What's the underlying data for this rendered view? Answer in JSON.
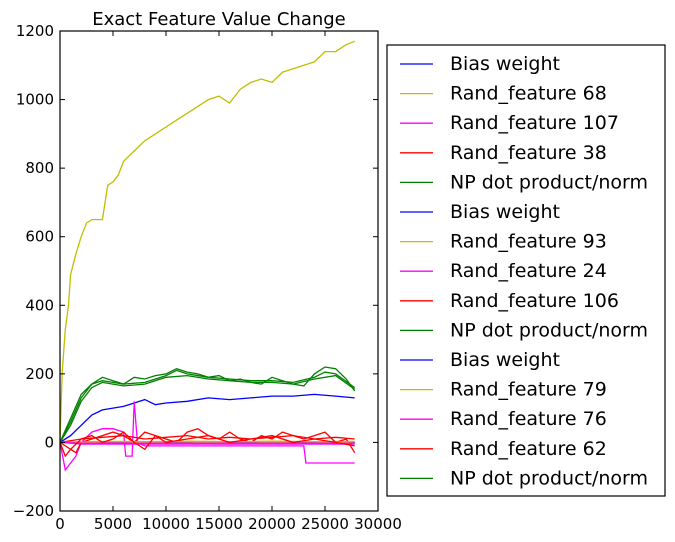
{
  "chart_data": {
    "type": "line",
    "title": "Exact Feature Value Change",
    "xlabel": "",
    "ylabel": "",
    "xlim": [
      0,
      30000
    ],
    "ylim": [
      -200,
      1200
    ],
    "x_ticks": [
      0,
      5000,
      10000,
      15000,
      20000,
      25000,
      30000
    ],
    "x_tick_labels": [
      "0",
      "5000",
      "10000",
      "15000",
      "20000",
      "25000",
      "30000"
    ],
    "y_ticks": [
      -200,
      0,
      200,
      400,
      600,
      800,
      1000,
      1200
    ],
    "y_tick_labels": [
      "−200",
      "0",
      "200",
      "400",
      "600",
      "800",
      "1000",
      "1200"
    ],
    "grid": false,
    "legend_position": "outside-right",
    "colors": {
      "blue": "#0000ff",
      "yellow": "#bfbf00",
      "magenta": "#ff00ff",
      "red": "#ff0000",
      "green": "#008000"
    },
    "series": [
      {
        "name": "Bias weight",
        "color": "blue",
        "x": [
          0,
          1000,
          2000,
          3000,
          4000,
          5000,
          6000,
          7000,
          8000,
          9000,
          10000,
          12000,
          14000,
          16000,
          18000,
          20000,
          22000,
          24000,
          26000,
          27800
        ],
        "y": [
          0,
          20,
          50,
          80,
          95,
          100,
          105,
          115,
          125,
          110,
          115,
          120,
          130,
          125,
          130,
          135,
          135,
          140,
          135,
          130
        ]
      },
      {
        "name": "Rand_feature 68",
        "color": "yellow",
        "x": [
          0,
          200,
          500,
          800,
          1000,
          1500,
          2000,
          2500,
          3000,
          3500,
          4000,
          4500,
          5000,
          5500,
          6000,
          7000,
          8000,
          9000,
          10000,
          11000,
          12000,
          13000,
          14000,
          15000,
          16000,
          17000,
          18000,
          19000,
          20000,
          21000,
          22000,
          23000,
          24000,
          25000,
          26000,
          27000,
          27800
        ],
        "y": [
          0,
          200,
          330,
          400,
          490,
          550,
          600,
          640,
          650,
          650,
          650,
          750,
          760,
          780,
          820,
          850,
          880,
          900,
          920,
          940,
          960,
          980,
          1000,
          1010,
          990,
          1030,
          1050,
          1060,
          1050,
          1080,
          1090,
          1100,
          1110,
          1140,
          1140,
          1160,
          1170
        ]
      },
      {
        "name": "Rand_feature 107",
        "color": "magenta",
        "x": [
          0,
          500,
          1000,
          1500,
          2000,
          3000,
          4000,
          5000,
          6000,
          6200,
          6800,
          7000,
          7300,
          8000,
          10000,
          15000,
          20000,
          23000,
          23200,
          24000,
          27800
        ],
        "y": [
          0,
          -80,
          -60,
          -40,
          0,
          30,
          40,
          40,
          30,
          -40,
          -40,
          120,
          0,
          -10,
          -10,
          -10,
          -10,
          -10,
          -60,
          -60,
          -60
        ]
      },
      {
        "name": "Rand_feature 38",
        "color": "red",
        "x": [
          0,
          2000,
          4000,
          6000,
          8000,
          10000,
          12000,
          14000,
          16000,
          18000,
          20000,
          22000,
          24000,
          26000,
          27800
        ],
        "y": [
          0,
          10,
          15,
          20,
          10,
          15,
          20,
          10,
          15,
          10,
          15,
          20,
          10,
          15,
          10
        ]
      },
      {
        "name": "NP dot product/norm",
        "color": "green",
        "x": [
          0,
          1000,
          2000,
          3000,
          4000,
          5000,
          6000,
          8000,
          10000,
          11000,
          12000,
          14000,
          16000,
          18000,
          20000,
          22000,
          24000,
          25000,
          26000,
          27800
        ],
        "y": [
          0,
          60,
          130,
          170,
          180,
          175,
          170,
          175,
          195,
          210,
          200,
          190,
          185,
          180,
          180,
          175,
          190,
          205,
          200,
          160
        ]
      },
      {
        "name": "Bias weight",
        "color": "blue",
        "x": [
          0,
          2000,
          4000,
          6000,
          8000,
          10000,
          12000,
          14000,
          16000,
          18000,
          20000,
          22000,
          24000,
          26000,
          27800
        ],
        "y": [
          0,
          0,
          0,
          0,
          0,
          0,
          0,
          0,
          0,
          0,
          0,
          0,
          0,
          0,
          0
        ]
      },
      {
        "name": "Rand_feature 93",
        "color": "yellow",
        "x": [
          0,
          2000,
          4000,
          6000,
          8000,
          10000,
          12000,
          14000,
          16000,
          18000,
          20000,
          22000,
          24000,
          26000,
          27800
        ],
        "y": [
          0,
          2,
          3,
          3,
          2,
          3,
          4,
          3,
          2,
          3,
          4,
          3,
          2,
          3,
          3
        ]
      },
      {
        "name": "Rand_feature 24",
        "color": "magenta",
        "x": [
          0,
          2000,
          4000,
          6000,
          8000,
          10000,
          12000,
          14000,
          16000,
          18000,
          20000,
          22000,
          24000,
          26000,
          27800
        ],
        "y": [
          0,
          -5,
          -5,
          -5,
          -5,
          -5,
          -5,
          -5,
          -5,
          -5,
          -5,
          -5,
          -5,
          -5,
          -5
        ]
      },
      {
        "name": "Rand_feature 106",
        "color": "red",
        "x": [
          0,
          500,
          1000,
          1500,
          2000,
          3000,
          4000,
          5000,
          6000,
          7000,
          8000,
          9000,
          10000,
          11000,
          12000,
          13000,
          14000,
          15000,
          16000,
          17000,
          18000,
          19000,
          20000,
          21000,
          22000,
          23000,
          24000,
          25000,
          26000,
          27000,
          27800
        ],
        "y": [
          0,
          -40,
          -20,
          -30,
          0,
          10,
          20,
          30,
          20,
          0,
          30,
          20,
          10,
          0,
          30,
          40,
          20,
          10,
          30,
          10,
          0,
          20,
          10,
          30,
          20,
          10,
          20,
          30,
          0,
          10,
          -30
        ]
      },
      {
        "name": "NP dot product/norm",
        "color": "green",
        "x": [
          0,
          1000,
          2000,
          3000,
          4000,
          5000,
          6000,
          7000,
          8000,
          9000,
          10000,
          11000,
          12000,
          13000,
          14000,
          15000,
          16000,
          17000,
          18000,
          19000,
          20000,
          21000,
          22000,
          23000,
          24000,
          25000,
          26000,
          27000,
          27800
        ],
        "y": [
          0,
          70,
          140,
          170,
          190,
          180,
          170,
          190,
          185,
          195,
          200,
          215,
          205,
          200,
          190,
          195,
          180,
          185,
          175,
          170,
          190,
          180,
          170,
          165,
          200,
          220,
          215,
          185,
          150
        ]
      },
      {
        "name": "Bias weight",
        "color": "blue",
        "x": [
          0,
          2000,
          4000,
          6000,
          8000,
          10000,
          12000,
          14000,
          16000,
          18000,
          20000,
          22000,
          24000,
          26000,
          27800
        ],
        "y": [
          0,
          1,
          1,
          1,
          1,
          1,
          1,
          1,
          1,
          1,
          1,
          1,
          1,
          1,
          1
        ]
      },
      {
        "name": "Rand_feature 79",
        "color": "yellow",
        "x": [
          0,
          2000,
          4000,
          6000,
          8000,
          10000,
          12000,
          14000,
          16000,
          18000,
          20000,
          22000,
          24000,
          26000,
          27800
        ],
        "y": [
          0,
          1,
          2,
          2,
          1,
          2,
          2,
          1,
          2,
          2,
          1,
          2,
          2,
          1,
          2
        ]
      },
      {
        "name": "Rand_feature 76",
        "color": "magenta",
        "x": [
          0,
          2000,
          4000,
          6000,
          8000,
          10000,
          12000,
          14000,
          16000,
          18000,
          20000,
          22000,
          24000,
          26000,
          27800
        ],
        "y": [
          0,
          -2,
          -2,
          -2,
          -2,
          -2,
          -2,
          -2,
          -2,
          -2,
          -2,
          -2,
          -2,
          -2,
          -2
        ]
      },
      {
        "name": "Rand_feature 62",
        "color": "red",
        "x": [
          0,
          1000,
          2000,
          3000,
          4000,
          5000,
          6000,
          7000,
          8000,
          9000,
          10000,
          12000,
          14000,
          16000,
          18000,
          20000,
          22000,
          24000,
          26000,
          27800
        ],
        "y": [
          0,
          -20,
          10,
          20,
          0,
          10,
          30,
          0,
          -20,
          20,
          0,
          10,
          20,
          0,
          10,
          20,
          0,
          10,
          0,
          -10
        ]
      },
      {
        "name": "NP dot product/norm",
        "color": "green",
        "x": [
          0,
          1000,
          2000,
          3000,
          4000,
          5000,
          6000,
          8000,
          10000,
          12000,
          14000,
          16000,
          18000,
          20000,
          22000,
          24000,
          26000,
          27800
        ],
        "y": [
          0,
          50,
          120,
          160,
          175,
          170,
          165,
          170,
          190,
          195,
          185,
          180,
          175,
          175,
          170,
          185,
          195,
          155
        ]
      }
    ]
  }
}
